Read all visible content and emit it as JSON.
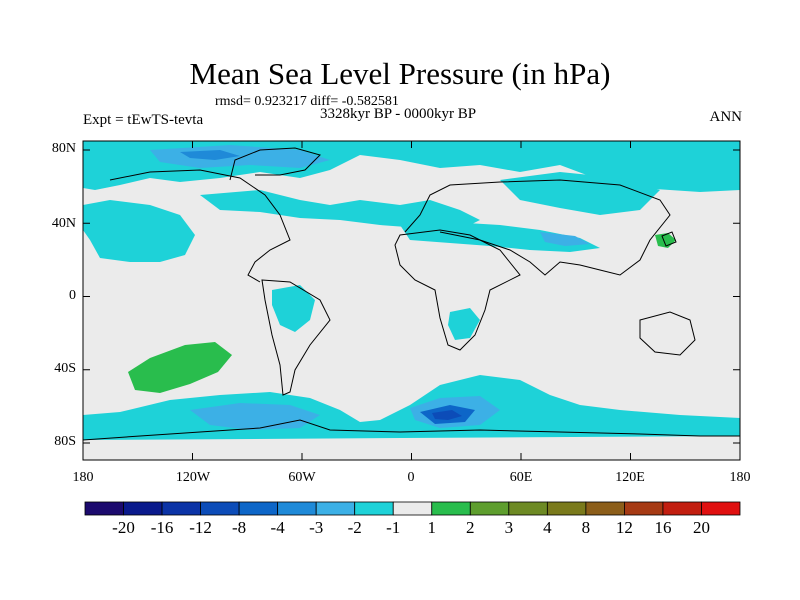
{
  "title": "Mean Sea Level Pressure (in hPa)",
  "stats_line": "rmsd= 0.923217 diff= -0.582581",
  "period": "3328kyr BP - 0000kyr BP",
  "experiment": "Expt = tEwTS-tevta",
  "season": "ANN",
  "lat_labels": [
    "80N",
    "40N",
    "0",
    "40S",
    "80S"
  ],
  "lon_labels": [
    "180",
    "120W",
    "60W",
    "0",
    "60E",
    "120E",
    "180"
  ],
  "colorbar": {
    "labels": [
      "-20",
      "-16",
      "-12",
      "-8",
      "-4",
      "-3",
      "-2",
      "-1",
      "1",
      "2",
      "3",
      "4",
      "8",
      "12",
      "16",
      "20"
    ],
    "colors": [
      "#1c0a6e",
      "#0a1a8c",
      "#0b33a6",
      "#0c4cb8",
      "#0d66c8",
      "#1f8ad8",
      "#3cb0e6",
      "#1ed2d8",
      "#ebebeb",
      "#29bd4d",
      "#5e9e2e",
      "#6d8a24",
      "#7a7a1c",
      "#8c5e1a",
      "#a63a14",
      "#c21e10",
      "#e01010"
    ]
  },
  "field_colors": {
    "ocean_base": "#ebebeb",
    "weak_negative": "#1ed2d8",
    "moderate_negative": "#3cb0e6",
    "strong_negative": "#1f8ad8",
    "stronger_negative": "#0d66c8",
    "strongest_negative": "#0c4cb8",
    "weak_positive": "#29bd4d"
  }
}
